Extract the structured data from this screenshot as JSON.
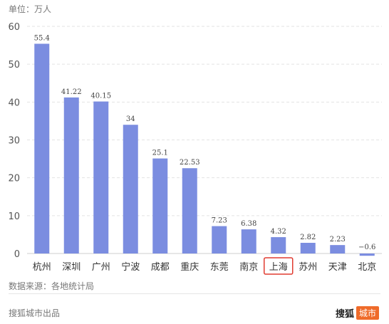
{
  "unit_label": "单位：万人",
  "source_label": "数据来源：各地统计局",
  "footer_label": "搜狐城市出品",
  "brand": {
    "name": "搜狐",
    "badge": "城市"
  },
  "colors": {
    "bar": "#7b8de0",
    "highlight_box": "#e03c31",
    "grid": "#e3e3e3",
    "axis_text": "#555555",
    "brand_badge": "#ef6b2a"
  },
  "chart_data": {
    "type": "bar",
    "title": "",
    "xlabel": "",
    "ylabel": "",
    "categories": [
      "杭州",
      "深圳",
      "广州",
      "宁波",
      "成都",
      "重庆",
      "东莞",
      "南京",
      "上海",
      "苏州",
      "天津",
      "北京"
    ],
    "values": [
      55.4,
      41.22,
      40.15,
      34,
      25.1,
      22.53,
      7.23,
      6.38,
      4.32,
      2.82,
      2.23,
      -0.6
    ],
    "value_labels": [
      "55.4",
      "41.22",
      "40.15",
      "34",
      "25.1",
      "22.53",
      "7.23",
      "6.38",
      "4.32",
      "2.82",
      "2.23",
      "−0.6"
    ],
    "ylim": [
      0,
      60
    ],
    "yticks": [
      0,
      10,
      20,
      30,
      40,
      50,
      60
    ],
    "grid": true,
    "highlight_category": "上海"
  }
}
